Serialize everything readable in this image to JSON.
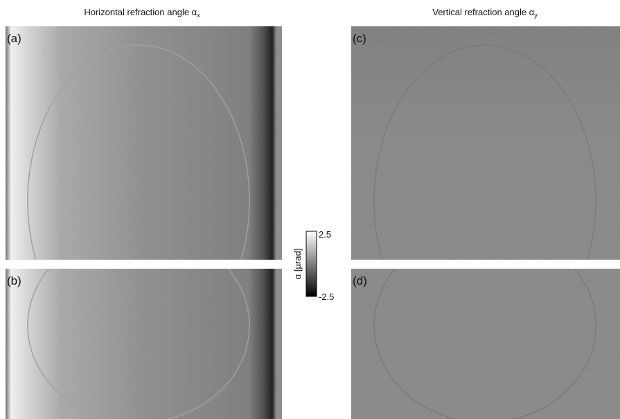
{
  "columns": [
    {
      "title": "Horizontal refraction angle α",
      "subscript": "x"
    },
    {
      "title": "Vertical refraction angle α",
      "subscript": "y"
    }
  ],
  "panels": [
    "(a)",
    "(b)",
    "(c)",
    "(d)"
  ],
  "colorbar": {
    "label": "α [µrad]",
    "max": 2.5,
    "min": -2.5
  }
}
